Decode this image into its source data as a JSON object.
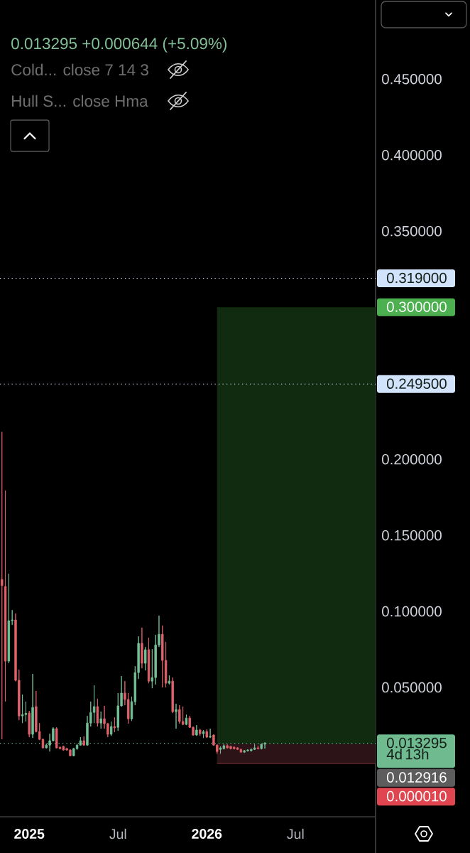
{
  "chart_data": {
    "type": "candlestick",
    "subtitle": "0.013295 +0.000644 (+5.09%)",
    "annotations": [
      "Cold... close 7 14 3",
      "Hull S... close Hma"
    ],
    "x": [
      "2024-11-11",
      "2024-11-18",
      "2024-11-25",
      "2024-12-02",
      "2024-12-09",
      "2024-12-16",
      "2024-12-23",
      "2024-12-30",
      "2025-01-06",
      "2025-01-13",
      "2025-01-20",
      "2025-01-27",
      "2025-02-03",
      "2025-02-10",
      "2025-02-17",
      "2025-02-24",
      "2025-03-03",
      "2025-03-10",
      "2025-03-17",
      "2025-03-24",
      "2025-03-31",
      "2025-04-07",
      "2025-04-14",
      "2025-04-21",
      "2025-04-28",
      "2025-05-05",
      "2025-05-12",
      "2025-05-19",
      "2025-05-26",
      "2025-06-02",
      "2025-06-09",
      "2025-06-16",
      "2025-06-23",
      "2025-06-30",
      "2025-07-07",
      "2025-07-14",
      "2025-07-21",
      "2025-07-28",
      "2025-08-04",
      "2025-08-11",
      "2025-08-18",
      "2025-08-25",
      "2025-09-01",
      "2025-09-08",
      "2025-09-15",
      "2025-09-22",
      "2025-09-29",
      "2025-10-06",
      "2025-10-13",
      "2025-10-20",
      "2025-10-27",
      "2025-11-03",
      "2025-11-10",
      "2025-11-17",
      "2025-11-24",
      "2025-12-01",
      "2025-12-08",
      "2025-12-15",
      "2025-12-22",
      "2025-12-29",
      "2026-01-05",
      "2026-01-12",
      "2026-01-19",
      "2026-01-26",
      "2026-02-02",
      "2026-02-09",
      "2026-02-16",
      "2026-02-23",
      "2026-03-02",
      "2026-03-09",
      "2026-03-16",
      "2026-03-23",
      "2026-03-30",
      "2026-04-06",
      "2026-04-13",
      "2026-04-20",
      "2026-04-27",
      "2026-05-04"
    ],
    "ohlc": [
      [
        0.121,
        0.218,
        0.016,
        0.117
      ],
      [
        0.1164,
        0.1794,
        0.0407,
        0.0673
      ],
      [
        0.0673,
        0.1248,
        0.066,
        0.0939
      ],
      [
        0.0939,
        0.1009,
        0.0911,
        0.0944
      ],
      [
        0.0944,
        0.0986,
        0.054,
        0.0547
      ],
      [
        0.0547,
        0.0617,
        0.0285,
        0.0313
      ],
      [
        0.0313,
        0.0453,
        0.0266,
        0.0322
      ],
      [
        0.0322,
        0.0407,
        0.0276,
        0.033
      ],
      [
        0.0332,
        0.0346,
        0.0173,
        0.0192
      ],
      [
        0.0192,
        0.0589,
        0.0168,
        0.0369
      ],
      [
        0.0374,
        0.0477,
        0.0205,
        0.021
      ],
      [
        0.021,
        0.0266,
        0.0154,
        0.0159
      ],
      [
        0.0159,
        0.0164,
        0.0098,
        0.0103
      ],
      [
        0.0103,
        0.0131,
        0.0098,
        0.0121
      ],
      [
        0.0121,
        0.0196,
        0.0079,
        0.015
      ],
      [
        0.015,
        0.0238,
        0.0145,
        0.0229
      ],
      [
        0.0229,
        0.0238,
        0.0098,
        0.0103
      ],
      [
        0.0107,
        0.0112,
        0.0093,
        0.0098
      ],
      [
        0.0112,
        0.0117,
        0.0084,
        0.0089
      ],
      [
        0.0098,
        0.0103,
        0.0084,
        0.0089
      ],
      [
        0.0089,
        0.0093,
        0.0047,
        0.0051
      ],
      [
        0.0051,
        0.0103,
        0.0047,
        0.0098
      ],
      [
        0.0098,
        0.0131,
        0.0089,
        0.0121
      ],
      [
        0.0121,
        0.0173,
        0.0117,
        0.015
      ],
      [
        0.015,
        0.0178,
        0.0117,
        0.0121
      ],
      [
        0.0121,
        0.0313,
        0.0117,
        0.0266
      ],
      [
        0.0266,
        0.0407,
        0.0243,
        0.0336
      ],
      [
        0.0336,
        0.0514,
        0.0266,
        0.0374
      ],
      [
        0.0374,
        0.0425,
        0.0243,
        0.0266
      ],
      [
        0.0266,
        0.0341,
        0.0229,
        0.0294
      ],
      [
        0.0294,
        0.0379,
        0.0229,
        0.0262
      ],
      [
        0.0262,
        0.0266,
        0.0173,
        0.0192
      ],
      [
        0.0192,
        0.0276,
        0.0182,
        0.0243
      ],
      [
        0.0243,
        0.0304,
        0.0206,
        0.0234
      ],
      [
        0.0238,
        0.0463,
        0.0215,
        0.0379
      ],
      [
        0.0379,
        0.0575,
        0.0374,
        0.0463
      ],
      [
        0.0463,
        0.0542,
        0.0383,
        0.0421
      ],
      [
        0.0421,
        0.0463,
        0.0262,
        0.0294
      ],
      [
        0.0294,
        0.0439,
        0.028,
        0.0407
      ],
      [
        0.0407,
        0.064,
        0.0383,
        0.0598
      ],
      [
        0.0598,
        0.0836,
        0.0556,
        0.079
      ],
      [
        0.079,
        0.0893,
        0.0626,
        0.0659
      ],
      [
        0.0659,
        0.0766,
        0.0612,
        0.0748
      ],
      [
        0.0748,
        0.0827,
        0.0528,
        0.0542
      ],
      [
        0.0542,
        0.0752,
        0.0495,
        0.0565
      ],
      [
        0.0565,
        0.0846,
        0.0519,
        0.078
      ],
      [
        0.078,
        0.0972,
        0.0766,
        0.085
      ],
      [
        0.085,
        0.0907,
        0.05,
        0.0678
      ],
      [
        0.0678,
        0.0799,
        0.05,
        0.0528
      ],
      [
        0.0528,
        0.0579,
        0.0519,
        0.0542
      ],
      [
        0.0542,
        0.0565,
        0.0332,
        0.0341
      ],
      [
        0.0341,
        0.0393,
        0.0229,
        0.0355
      ],
      [
        0.0355,
        0.0383,
        0.0262,
        0.0276
      ],
      [
        0.0276,
        0.0374,
        0.0252,
        0.0257
      ],
      [
        0.0257,
        0.0322,
        0.0252,
        0.0299
      ],
      [
        0.0299,
        0.0313,
        0.0234,
        0.0238
      ],
      [
        0.0238,
        0.0243,
        0.0182,
        0.0187
      ],
      [
        0.0187,
        0.0252,
        0.0182,
        0.022
      ],
      [
        0.022,
        0.0229,
        0.0182,
        0.0196
      ],
      [
        0.0196,
        0.022,
        0.0168,
        0.021
      ],
      [
        0.021,
        0.0224,
        0.0168,
        0.0173
      ],
      [
        0.0173,
        0.0229,
        0.0168,
        0.0178
      ],
      [
        0.0187,
        0.0192,
        0.0117,
        0.0121
      ],
      [
        0.0121,
        0.0126,
        0.0065,
        0.0079
      ],
      [
        0.0093,
        0.0112,
        0.0065,
        0.0103
      ],
      [
        0.0098,
        0.0126,
        0.0093,
        0.0117
      ],
      [
        0.0117,
        0.0126,
        0.0098,
        0.0103
      ],
      [
        0.0112,
        0.0117,
        0.0093,
        0.0098
      ],
      [
        0.0107,
        0.0112,
        0.0093,
        0.0098
      ],
      [
        0.0103,
        0.0107,
        0.0089,
        0.0093
      ],
      [
        0.0093,
        0.0098,
        0.007,
        0.0075
      ],
      [
        0.0075,
        0.0089,
        0.007,
        0.0084
      ],
      [
        0.0084,
        0.0093,
        0.0079,
        0.0089
      ],
      [
        0.0084,
        0.0098,
        0.0079,
        0.0093
      ],
      [
        0.0093,
        0.0126,
        0.0089,
        0.0103
      ],
      [
        0.0103,
        0.0117,
        0.0093,
        0.0098
      ],
      [
        0.0098,
        0.0127,
        0.0093,
        0.0127
      ],
      [
        0.0127,
        0.014,
        0.0098,
        0.013295
      ]
    ],
    "colors": [
      "#e0626a",
      "#e0626a",
      "#73c196",
      "#73c196",
      "#e0626a",
      "#e0626a",
      "#73c196",
      "#73c196",
      "#e0626a",
      "#73c196",
      "#e0626a",
      "#e0626a",
      "#e0626a",
      "#73c196",
      "#73c196",
      "#73c196",
      "#e0626a",
      "#e0626a",
      "#e0626a",
      "#e0626a",
      "#e0626a",
      "#73c196",
      "#73c196",
      "#73c196",
      "#e0626a",
      "#73c196",
      "#73c196",
      "#73c196",
      "#e0626a",
      "#73c196",
      "#e0626a",
      "#e0626a",
      "#73c196",
      "#e0626a",
      "#73c196",
      "#73c196",
      "#e0626a",
      "#e0626a",
      "#73c196",
      "#73c196",
      "#73c196",
      "#e0626a",
      "#73c196",
      "#e0626a",
      "#73c196",
      "#73c196",
      "#73c196",
      "#e0626a",
      "#e0626a",
      "#73c196",
      "#e0626a",
      "#73c196",
      "#e0626a",
      "#e0626a",
      "#73c196",
      "#e0626a",
      "#e0626a",
      "#73c196",
      "#e0626a",
      "#73c196",
      "#e0626a",
      "#73c196",
      "#e0626a",
      "#e0626a",
      "#73c196",
      "#73c196",
      "#e0626a",
      "#e0626a",
      "#e0626a",
      "#e0626a",
      "#e0626a",
      "#73c196",
      "#73c196",
      "#73c196",
      "#73c196",
      "#e0626a",
      "#73c196",
      "#73c196"
    ],
    "series": [
      {
        "type": "area",
        "x": [
          "2026-01-26",
          "2026-12-17"
        ],
        "values": [
          0.3,
          0.3
        ],
        "color": "#112b11",
        "value_labels": [
          null,
          "0.300000"
        ]
      },
      {
        "type": "area",
        "x": [
          "2026-01-26",
          "2026-12-17"
        ],
        "values": [
          0.012916,
          0.012916
        ],
        "color": "#2c1317",
        "value_labels": [
          null,
          "0.012916"
        ]
      },
      {
        "type": "line",
        "x": [
          "2026-01-26",
          "2026-12-17"
        ],
        "values": [
          1e-05,
          1e-05
        ],
        "color": "#6b2a31",
        "value_labels": [
          null,
          "0.000010"
        ]
      }
    ],
    "xlim": [
      "2024-11-07",
      "2026-12-17"
    ],
    "ylim": [
      -0.035,
      0.502
    ],
    "xticks": [
      {
        "value": "2025-01-06",
        "label": "2025"
      },
      {
        "value": "2025-07-07",
        "label": "Jul"
      },
      {
        "value": "2026-01-05",
        "label": "2026"
      },
      {
        "value": "2026-07-06",
        "label": "Jul"
      }
    ],
    "yticks": [
      {
        "value": 0.05,
        "label": "0.050000"
      },
      {
        "value": 0.1,
        "label": "0.100000"
      },
      {
        "value": 0.15,
        "label": "0.150000"
      },
      {
        "value": 0.2,
        "label": "0.200000"
      },
      {
        "value": 0.35,
        "label": "0.350000"
      },
      {
        "value": 0.4,
        "label": "0.400000"
      },
      {
        "value": 0.45,
        "label": "0.450000"
      }
    ],
    "ref_lines": [
      {
        "axis": "y",
        "value": 0.319,
        "label": "0.319000",
        "color": "#d2e3fc",
        "line_style": "dotted"
      },
      {
        "axis": "y",
        "value": 0.2495,
        "label": "0.249500",
        "color": "#d2e3fc",
        "line_style": "dotted"
      },
      {
        "axis": "y",
        "value": 0.013295,
        "label": "0.013295 4d 13h",
        "color": "#6fba8f",
        "line_style": "dotted"
      }
    ]
  }
}
